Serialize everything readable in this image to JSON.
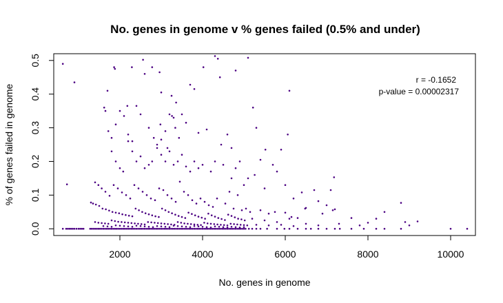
{
  "chart_data": {
    "type": "scatter",
    "title": "No. genes in genome v % genes failed (0.5% and under)",
    "xlabel": "No. genes in genome",
    "ylabel": "% of genes failed in genome",
    "xlim": [
      400,
      10600
    ],
    "ylim": [
      -0.02,
      0.52
    ],
    "xticks": [
      2000,
      4000,
      6000,
      8000,
      10000
    ],
    "xtick_labels": [
      "2000",
      "4000",
      "6000",
      "8000",
      "10000"
    ],
    "yticks": [
      0.0,
      0.1,
      0.2,
      0.3,
      0.4,
      0.5
    ],
    "ytick_labels": [
      "0.0",
      "0.1",
      "0.2",
      "0.3",
      "0.4",
      "0.5"
    ],
    "grid": false,
    "point_color": "#4b0082",
    "annotations": {
      "r": "r = -0.1652",
      "pvalue": "p-value = 0.00002317"
    },
    "points": [
      [
        620,
        0.49
      ],
      [
        900,
        0.435
      ],
      [
        720,
        0.132
      ],
      [
        1700,
        0.41
      ],
      [
        1860,
        0.48
      ],
      [
        1880,
        0.475
      ],
      [
        2100,
        0.335
      ],
      [
        2180,
        0.365
      ],
      [
        2290,
        0.48
      ],
      [
        2560,
        0.502
      ],
      [
        2600,
        0.46
      ],
      [
        2780,
        0.48
      ],
      [
        2960,
        0.465
      ],
      [
        3000,
        0.405
      ],
      [
        3250,
        0.395
      ],
      [
        3360,
        0.375
      ],
      [
        3700,
        0.428
      ],
      [
        3800,
        0.415
      ],
      [
        4020,
        0.48
      ],
      [
        4300,
        0.513
      ],
      [
        4370,
        0.505
      ],
      [
        4420,
        0.45
      ],
      [
        4800,
        0.47
      ],
      [
        5100,
        0.508
      ],
      [
        5220,
        0.36
      ],
      [
        6100,
        0.41
      ],
      [
        6060,
        0.28
      ],
      [
        5520,
        0.235
      ],
      [
        5900,
        0.235
      ],
      [
        7180,
        0.153
      ],
      [
        1620,
        0.36
      ],
      [
        1650,
        0.35
      ],
      [
        1720,
        0.29
      ],
      [
        1800,
        0.27
      ],
      [
        1900,
        0.31
      ],
      [
        2000,
        0.35
      ],
      [
        2200,
        0.28
      ],
      [
        2300,
        0.26
      ],
      [
        2400,
        0.365
      ],
      [
        2500,
        0.34
      ],
      [
        2700,
        0.3
      ],
      [
        2820,
        0.27
      ],
      [
        2900,
        0.25
      ],
      [
        2980,
        0.31
      ],
      [
        3100,
        0.29
      ],
      [
        3200,
        0.34
      ],
      [
        3260,
        0.335
      ],
      [
        3300,
        0.33
      ],
      [
        3340,
        0.3
      ],
      [
        3430,
        0.27
      ],
      [
        3500,
        0.34
      ],
      [
        3600,
        0.315
      ],
      [
        3900,
        0.285
      ],
      [
        4100,
        0.295
      ],
      [
        4450,
        0.25
      ],
      [
        4600,
        0.28
      ],
      [
        4700,
        0.24
      ],
      [
        5300,
        0.3
      ],
      [
        5400,
        0.205
      ],
      [
        5700,
        0.19
      ],
      [
        5800,
        0.17
      ],
      [
        6400,
        0.108
      ],
      [
        6700,
        0.115
      ],
      [
        7100,
        0.115
      ],
      [
        8800,
        0.077
      ],
      [
        3000,
        0.265
      ],
      [
        3150,
        0.24
      ],
      [
        1800,
        0.23
      ],
      [
        1900,
        0.2
      ],
      [
        2000,
        0.18
      ],
      [
        2080,
        0.17
      ],
      [
        2200,
        0.26
      ],
      [
        2300,
        0.23
      ],
      [
        2400,
        0.2
      ],
      [
        2500,
        0.215
      ],
      [
        2600,
        0.18
      ],
      [
        2700,
        0.19
      ],
      [
        2780,
        0.2
      ],
      [
        2900,
        0.24
      ],
      [
        3000,
        0.22
      ],
      [
        3100,
        0.2
      ],
      [
        3200,
        0.23
      ],
      [
        3300,
        0.19
      ],
      [
        3400,
        0.2
      ],
      [
        3500,
        0.22
      ],
      [
        3600,
        0.185
      ],
      [
        3700,
        0.17
      ],
      [
        3800,
        0.2
      ],
      [
        3900,
        0.18
      ],
      [
        4000,
        0.19
      ],
      [
        4200,
        0.17
      ],
      [
        4300,
        0.2
      ],
      [
        4500,
        0.19
      ],
      [
        4700,
        0.15
      ],
      [
        4800,
        0.18
      ],
      [
        4900,
        0.2
      ],
      [
        5000,
        0.13
      ],
      [
        5100,
        0.15
      ],
      [
        5260,
        0.16
      ],
      [
        5500,
        0.12
      ],
      [
        6000,
        0.13
      ],
      [
        6200,
        0.09
      ],
      [
        6500,
        0.062
      ],
      [
        6800,
        0.082
      ],
      [
        7000,
        0.07
      ],
      [
        7200,
        0.058
      ],
      [
        1400,
        0.138
      ],
      [
        1480,
        0.13
      ],
      [
        1560,
        0.12
      ],
      [
        1650,
        0.11
      ],
      [
        1750,
        0.098
      ],
      [
        1850,
        0.13
      ],
      [
        1950,
        0.12
      ],
      [
        2050,
        0.108
      ],
      [
        2150,
        0.1
      ],
      [
        2250,
        0.09
      ],
      [
        2350,
        0.13
      ],
      [
        2450,
        0.12
      ],
      [
        2550,
        0.11
      ],
      [
        2650,
        0.1
      ],
      [
        2750,
        0.09
      ],
      [
        2850,
        0.085
      ],
      [
        2950,
        0.12
      ],
      [
        3050,
        0.115
      ],
      [
        3150,
        0.1
      ],
      [
        3250,
        0.09
      ],
      [
        3350,
        0.08
      ],
      [
        3450,
        0.14
      ],
      [
        3550,
        0.11
      ],
      [
        3650,
        0.1
      ],
      [
        3750,
        0.085
      ],
      [
        3850,
        0.075
      ],
      [
        3950,
        0.09
      ],
      [
        4050,
        0.08
      ],
      [
        4150,
        0.07
      ],
      [
        4250,
        0.065
      ],
      [
        4350,
        0.09
      ],
      [
        4550,
        0.075
      ],
      [
        4650,
        0.11
      ],
      [
        4750,
        0.06
      ],
      [
        4850,
        0.1
      ],
      [
        4950,
        0.055
      ],
      [
        5050,
        0.06
      ],
      [
        5150,
        0.05
      ],
      [
        5400,
        0.055
      ],
      [
        5600,
        0.045
      ],
      [
        5750,
        0.05
      ],
      [
        6000,
        0.048
      ],
      [
        6150,
        0.035
      ],
      [
        6300,
        0.032
      ],
      [
        6480,
        0.06
      ],
      [
        6900,
        0.045
      ],
      [
        7150,
        0.055
      ],
      [
        7600,
        0.032
      ],
      [
        8200,
        0.03
      ],
      [
        8400,
        0.05
      ],
      [
        8900,
        0.02
      ],
      [
        9200,
        0.022
      ],
      [
        1300,
        0.078
      ],
      [
        1350,
        0.075
      ],
      [
        1420,
        0.072
      ],
      [
        1500,
        0.068
      ],
      [
        1580,
        0.06
      ],
      [
        1660,
        0.058
      ],
      [
        1740,
        0.054
      ],
      [
        1820,
        0.05
      ],
      [
        1900,
        0.048
      ],
      [
        1980,
        0.046
      ],
      [
        2060,
        0.043
      ],
      [
        2140,
        0.041
      ],
      [
        2220,
        0.039
      ],
      [
        2300,
        0.037
      ],
      [
        2380,
        0.06
      ],
      [
        2460,
        0.055
      ],
      [
        2540,
        0.05
      ],
      [
        2620,
        0.046
      ],
      [
        2700,
        0.043
      ],
      [
        2780,
        0.04
      ],
      [
        2860,
        0.037
      ],
      [
        2940,
        0.035
      ],
      [
        3020,
        0.06
      ],
      [
        3100,
        0.055
      ],
      [
        3180,
        0.05
      ],
      [
        3260,
        0.046
      ],
      [
        3340,
        0.042
      ],
      [
        3420,
        0.038
      ],
      [
        3500,
        0.035
      ],
      [
        3580,
        0.032
      ],
      [
        3660,
        0.048
      ],
      [
        3740,
        0.044
      ],
      [
        3820,
        0.04
      ],
      [
        3900,
        0.036
      ],
      [
        3980,
        0.033
      ],
      [
        4060,
        0.03
      ],
      [
        4140,
        0.045
      ],
      [
        4220,
        0.04
      ],
      [
        4300,
        0.036
      ],
      [
        4380,
        0.032
      ],
      [
        4460,
        0.029
      ],
      [
        4540,
        0.026
      ],
      [
        4620,
        0.042
      ],
      [
        4700,
        0.038
      ],
      [
        4780,
        0.034
      ],
      [
        4860,
        0.03
      ],
      [
        4940,
        0.028
      ],
      [
        5020,
        0.025
      ],
      [
        5200,
        0.03
      ],
      [
        5500,
        0.025
      ],
      [
        5800,
        0.02
      ],
      [
        6100,
        0.03
      ],
      [
        6500,
        0.015
      ],
      [
        7300,
        0.015
      ],
      [
        7800,
        0.01
      ],
      [
        8000,
        0.018
      ],
      [
        9000,
        0.01
      ],
      [
        1400,
        0.02
      ],
      [
        1480,
        0.018
      ],
      [
        1560,
        0.017
      ],
      [
        1640,
        0.016
      ],
      [
        1720,
        0.015
      ],
      [
        1800,
        0.025
      ],
      [
        1880,
        0.023
      ],
      [
        1960,
        0.021
      ],
      [
        2040,
        0.02
      ],
      [
        2120,
        0.019
      ],
      [
        2200,
        0.018
      ],
      [
        2280,
        0.017
      ],
      [
        2360,
        0.016
      ],
      [
        2440,
        0.015
      ],
      [
        2520,
        0.014
      ],
      [
        2600,
        0.013
      ],
      [
        2680,
        0.02
      ],
      [
        2760,
        0.019
      ],
      [
        2840,
        0.018
      ],
      [
        2920,
        0.017
      ],
      [
        3000,
        0.016
      ],
      [
        3080,
        0.015
      ],
      [
        3160,
        0.014
      ],
      [
        3240,
        0.013
      ],
      [
        3320,
        0.012
      ],
      [
        3400,
        0.02
      ],
      [
        3480,
        0.018
      ],
      [
        3560,
        0.016
      ],
      [
        3640,
        0.015
      ],
      [
        3720,
        0.014
      ],
      [
        3800,
        0.013
      ],
      [
        3880,
        0.012
      ],
      [
        3960,
        0.011
      ],
      [
        4040,
        0.018
      ],
      [
        4120,
        0.016
      ],
      [
        4200,
        0.015
      ],
      [
        4280,
        0.014
      ],
      [
        4360,
        0.013
      ],
      [
        4440,
        0.012
      ],
      [
        4520,
        0.011
      ],
      [
        4600,
        0.01
      ],
      [
        4680,
        0.015
      ],
      [
        4760,
        0.014
      ],
      [
        4840,
        0.013
      ],
      [
        4920,
        0.012
      ],
      [
        5000,
        0.011
      ],
      [
        5080,
        0.01
      ],
      [
        5300,
        0.012
      ],
      [
        5600,
        0.01
      ],
      [
        5900,
        0.012
      ],
      [
        6200,
        0.008
      ],
      [
        6800,
        0.01
      ],
      [
        1600,
        0.008
      ],
      [
        1700,
        0.007
      ],
      [
        1800,
        0.006
      ],
      [
        1900,
        0.01
      ],
      [
        2000,
        0.009
      ],
      [
        2100,
        0.008
      ],
      [
        2200,
        0.007
      ],
      [
        2300,
        0.006
      ],
      [
        2400,
        0.009
      ],
      [
        2500,
        0.008
      ],
      [
        2600,
        0.007
      ],
      [
        2700,
        0.006
      ],
      [
        2800,
        0.005
      ],
      [
        2900,
        0.008
      ],
      [
        3000,
        0.007
      ],
      [
        3100,
        0.006
      ],
      [
        3200,
        0.005
      ],
      [
        3300,
        0.009
      ],
      [
        3400,
        0.008
      ],
      [
        3500,
        0.007
      ],
      [
        3600,
        0.006
      ],
      [
        3700,
        0.005
      ],
      [
        3800,
        0.008
      ],
      [
        3900,
        0.007
      ],
      [
        4000,
        0.006
      ],
      [
        4100,
        0.005
      ],
      [
        4200,
        0.004
      ],
      [
        4300,
        0.007
      ],
      [
        4400,
        0.006
      ],
      [
        4500,
        0.005
      ],
      [
        4600,
        0.004
      ],
      [
        4700,
        0.006
      ],
      [
        4800,
        0.005
      ],
      [
        4900,
        0.004
      ],
      [
        5000,
        0.005
      ],
      [
        620,
        0
      ],
      [
        700,
        0
      ],
      [
        740,
        0
      ],
      [
        780,
        0
      ],
      [
        820,
        0
      ],
      [
        860,
        0
      ],
      [
        900,
        0
      ],
      [
        950,
        0
      ],
      [
        1000,
        0
      ],
      [
        1040,
        0
      ],
      [
        1080,
        0
      ],
      [
        1120,
        0
      ],
      [
        1280,
        0
      ],
      [
        1320,
        0
      ],
      [
        1360,
        0
      ],
      [
        1400,
        0
      ],
      [
        1440,
        0
      ],
      [
        1480,
        0
      ],
      [
        1520,
        0
      ],
      [
        1560,
        0
      ],
      [
        1600,
        0
      ],
      [
        1640,
        0
      ],
      [
        1680,
        0
      ],
      [
        1720,
        0
      ],
      [
        1760,
        0
      ],
      [
        1800,
        0
      ],
      [
        1840,
        0
      ],
      [
        1880,
        0
      ],
      [
        1920,
        0
      ],
      [
        1960,
        0
      ],
      [
        2000,
        0
      ],
      [
        2040,
        0
      ],
      [
        2080,
        0
      ],
      [
        2120,
        0
      ],
      [
        2160,
        0
      ],
      [
        2200,
        0
      ],
      [
        2240,
        0
      ],
      [
        2280,
        0
      ],
      [
        2320,
        0
      ],
      [
        2360,
        0
      ],
      [
        2400,
        0
      ],
      [
        2440,
        0
      ],
      [
        2480,
        0
      ],
      [
        2520,
        0
      ],
      [
        2560,
        0
      ],
      [
        2600,
        0
      ],
      [
        2640,
        0
      ],
      [
        2680,
        0
      ],
      [
        2720,
        0
      ],
      [
        2760,
        0
      ],
      [
        2800,
        0
      ],
      [
        2840,
        0
      ],
      [
        2880,
        0
      ],
      [
        2920,
        0
      ],
      [
        2960,
        0
      ],
      [
        3000,
        0
      ],
      [
        3040,
        0
      ],
      [
        3080,
        0
      ],
      [
        3120,
        0
      ],
      [
        3160,
        0
      ],
      [
        3200,
        0
      ],
      [
        3240,
        0
      ],
      [
        3280,
        0
      ],
      [
        3320,
        0
      ],
      [
        3360,
        0
      ],
      [
        3400,
        0
      ],
      [
        3440,
        0
      ],
      [
        3480,
        0
      ],
      [
        3520,
        0
      ],
      [
        3560,
        0
      ],
      [
        3600,
        0
      ],
      [
        3640,
        0
      ],
      [
        3680,
        0
      ],
      [
        3720,
        0
      ],
      [
        3760,
        0
      ],
      [
        3800,
        0
      ],
      [
        3840,
        0
      ],
      [
        3880,
        0
      ],
      [
        3920,
        0
      ],
      [
        3960,
        0
      ],
      [
        4000,
        0
      ],
      [
        4040,
        0
      ],
      [
        4080,
        0
      ],
      [
        4120,
        0
      ],
      [
        4160,
        0
      ],
      [
        4200,
        0
      ],
      [
        4240,
        0
      ],
      [
        4280,
        0
      ],
      [
        4320,
        0
      ],
      [
        4360,
        0
      ],
      [
        4400,
        0
      ],
      [
        4440,
        0
      ],
      [
        4480,
        0
      ],
      [
        4520,
        0
      ],
      [
        4560,
        0
      ],
      [
        4600,
        0
      ],
      [
        4640,
        0
      ],
      [
        4680,
        0
      ],
      [
        4720,
        0
      ],
      [
        4760,
        0
      ],
      [
        4800,
        0
      ],
      [
        4840,
        0
      ],
      [
        4880,
        0
      ],
      [
        4920,
        0
      ],
      [
        4960,
        0
      ],
      [
        5000,
        0
      ],
      [
        5040,
        0
      ],
      [
        5120,
        0
      ],
      [
        5200,
        0
      ],
      [
        5300,
        0
      ],
      [
        5400,
        0
      ],
      [
        5560,
        0
      ],
      [
        5800,
        0
      ],
      [
        5980,
        0
      ],
      [
        6100,
        0
      ],
      [
        6300,
        0
      ],
      [
        6500,
        0
      ],
      [
        6620,
        0
      ],
      [
        6800,
        0
      ],
      [
        7000,
        0
      ],
      [
        7200,
        0
      ],
      [
        7320,
        0
      ],
      [
        7600,
        0
      ],
      [
        7900,
        0
      ],
      [
        8200,
        0
      ],
      [
        8400,
        0
      ],
      [
        8800,
        0
      ],
      [
        10000,
        0
      ],
      [
        10400,
        0
      ]
    ]
  }
}
